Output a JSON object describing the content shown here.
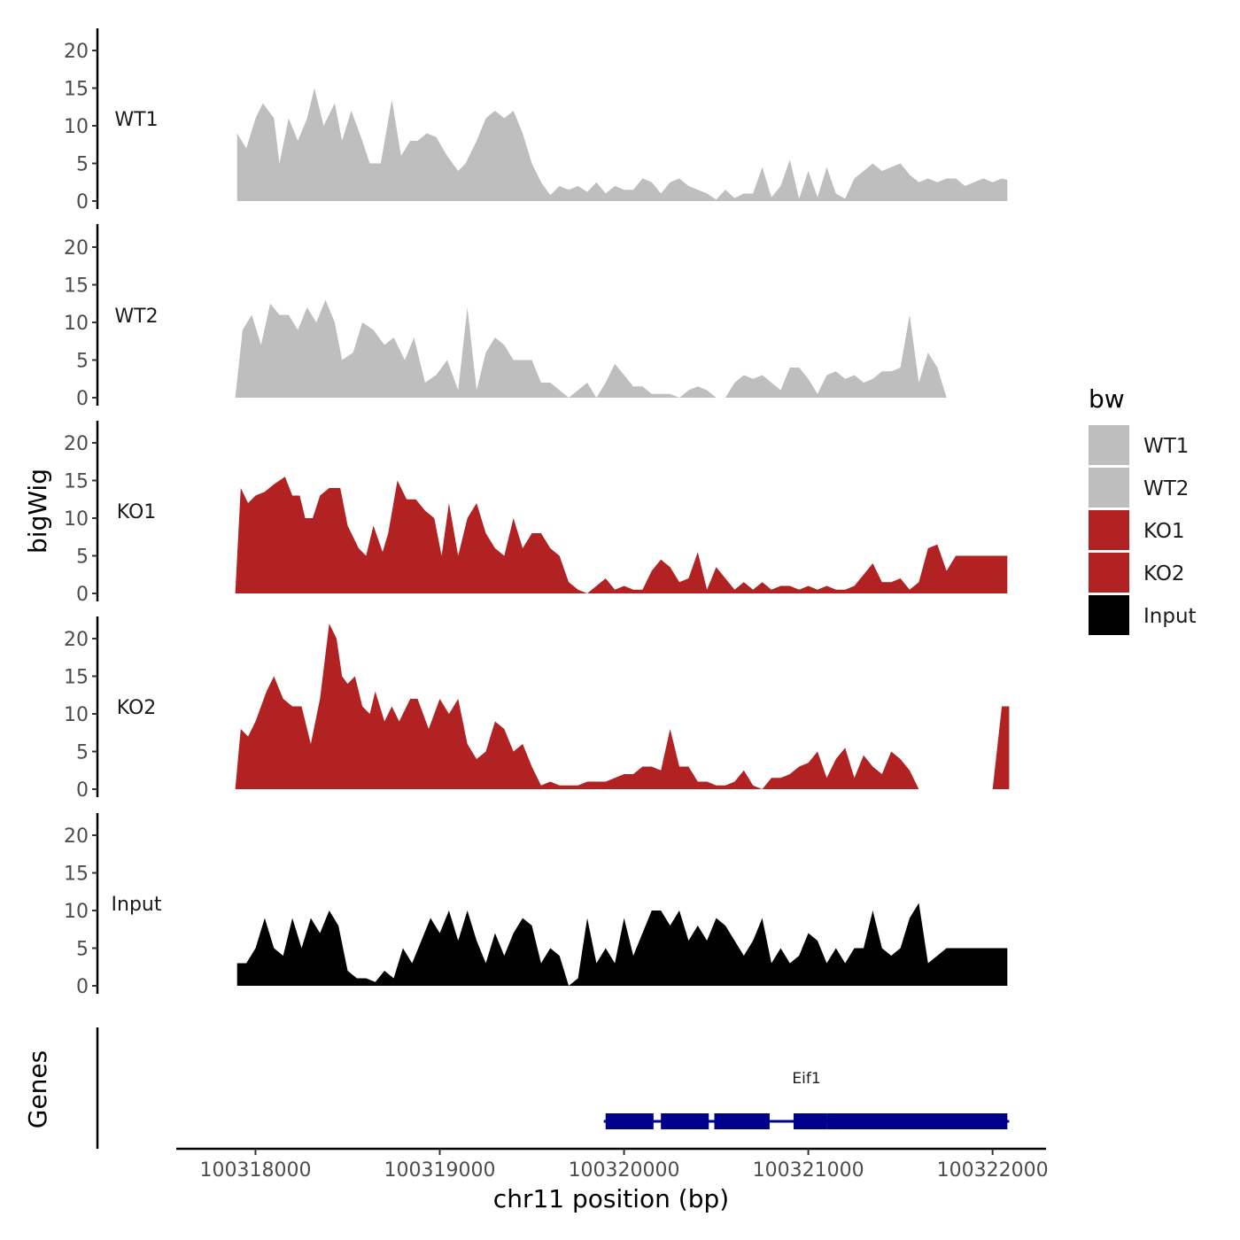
{
  "chart_data": {
    "type": "area",
    "chromosome": "chr11",
    "xlabel": "chr11 position (bp)",
    "ylabel": "bigWig",
    "genes_label": "Genes",
    "xlim": [
      100317570,
      100322290
    ],
    "x_ticks": [
      100318000,
      100319000,
      100320000,
      100321000,
      100322000
    ],
    "x_tick_labels": [
      "100318000",
      "100319000",
      "100320000",
      "100321000",
      "100322000"
    ],
    "ylim": [
      0,
      23
    ],
    "y_ticks": [
      0,
      5,
      10,
      15,
      20
    ],
    "y_tick_labels": [
      "0",
      "5",
      "10",
      "15",
      "20"
    ],
    "legend": {
      "title": "bw",
      "position": "right",
      "entries": [
        {
          "name": "WT1",
          "color": "#bebebe"
        },
        {
          "name": "WT2",
          "color": "#bebebe"
        },
        {
          "name": "KO1",
          "color": "#b22222"
        },
        {
          "name": "KO2",
          "color": "#b22222"
        },
        {
          "name": "Input",
          "color": "#000000"
        }
      ]
    },
    "series": [
      {
        "name": "WT1",
        "color": "#bebebe",
        "x": [
          100317900,
          100317950,
          100318000,
          100318040,
          100318100,
          100318130,
          100318180,
          100318230,
          100318280,
          100318320,
          100318370,
          100318430,
          100318470,
          100318520,
          100318580,
          100318620,
          100318680,
          100318740,
          100318790,
          100318840,
          100318880,
          100318930,
          100318980,
          100319040,
          100319100,
          100319140,
          100319200,
          100319250,
          100319300,
          100319350,
          100319400,
          100319450,
          100319500,
          100319550,
          100319600,
          100319650,
          100319700,
          100319750,
          100319800,
          100319850,
          100319900,
          100319950,
          100320000,
          100320050,
          100320100,
          100320150,
          100320200,
          100320250,
          100320300,
          100320350,
          100320400,
          100320450,
          100320500,
          100320550,
          100320600,
          100320650,
          100320700,
          100320750,
          100320800,
          100320850,
          100320900,
          100320950,
          100321000,
          100321050,
          100321100,
          100321150,
          100321200,
          100321250,
          100321300,
          100321350,
          100321400,
          100321450,
          100321500,
          100321550,
          100321600,
          100321650,
          100321700,
          100321750,
          100321800,
          100321850,
          100321900,
          100321950,
          100322000,
          100322050,
          100322080
        ],
        "values": [
          9,
          7,
          11,
          13,
          11,
          5,
          11,
          8,
          11,
          15,
          10,
          13,
          8,
          12,
          8,
          5,
          5,
          13.5,
          6,
          8,
          8,
          9,
          8.5,
          6,
          4,
          5,
          8,
          11,
          12,
          11,
          12,
          9,
          5,
          2.5,
          0.8,
          2,
          1.5,
          2,
          1.2,
          2.5,
          1,
          2,
          1.5,
          1.5,
          3,
          2.5,
          1,
          2.5,
          3,
          2,
          1.5,
          1,
          0.2,
          1.5,
          0.4,
          1,
          1,
          4.5,
          0.5,
          2,
          5.5,
          0.3,
          4,
          0.5,
          4.5,
          1,
          0.3,
          3,
          4,
          5,
          4,
          4.5,
          5,
          3.5,
          2.5,
          3,
          2.5,
          3,
          3,
          2,
          2.5,
          3,
          2.5,
          3,
          2.8
        ]
      },
      {
        "name": "WT2",
        "color": "#bebebe",
        "x": [
          100317890,
          100317930,
          100317980,
          100318030,
          100318080,
          100318130,
          100318180,
          100318230,
          100318280,
          100318330,
          100318380,
          100318430,
          100318470,
          100318530,
          100318580,
          100318640,
          100318700,
          100318750,
          100318810,
          100318860,
          100318920,
          100318980,
          100319040,
          100319100,
          100319150,
          100319200,
          100319250,
          100319300,
          100319350,
          100319400,
          100319450,
          100319500,
          100319550,
          100319600,
          100319650,
          100319700,
          100319750,
          100319800,
          100319850,
          100319900,
          100319950,
          100320000,
          100320050,
          100320100,
          100320150,
          100320200,
          100320250,
          100320300,
          100320350,
          100320400,
          100320450,
          100320500,
          100320550,
          100320600,
          100320650,
          100320700,
          100320750,
          100320800,
          100320850,
          100320900,
          100320950,
          100321000,
          100321050,
          100321100,
          100321150,
          100321200,
          100321250,
          100321300,
          100321350,
          100321400,
          100321450,
          100321500,
          100321550,
          100321600,
          100321650,
          100321700,
          100321750,
          100321800,
          100321850,
          100321900,
          100321950,
          100322000,
          100322050,
          100322080
        ],
        "values": [
          0,
          9,
          11,
          7,
          12.5,
          11,
          11,
          9,
          12,
          10,
          13,
          10,
          5,
          6,
          10,
          9,
          7,
          8,
          5,
          8,
          2,
          3,
          5,
          1,
          12,
          1,
          6,
          8,
          7,
          5,
          5,
          5,
          2,
          2,
          1,
          0,
          1,
          2,
          0,
          2,
          4.5,
          3,
          1.5,
          1.5,
          0.5,
          0.5,
          0.5,
          0,
          1,
          1.5,
          1,
          0,
          0,
          2,
          3,
          2.5,
          3,
          2,
          1,
          4,
          4,
          2.5,
          0.5,
          3,
          3.5,
          2.5,
          3,
          2,
          2.5,
          3.5,
          3.5,
          4,
          11,
          2,
          6,
          4,
          0,
          0,
          0,
          0,
          0,
          0,
          0,
          0
        ]
      },
      {
        "name": "KO1",
        "color": "#b22222",
        "x": [
          100317890,
          100317920,
          100317960,
          100318000,
          100318050,
          100318100,
          100318160,
          100318200,
          100318240,
          100318270,
          100318310,
          100318350,
          100318400,
          100318460,
          100318500,
          100318560,
          100318600,
          100318640,
          100318690,
          100318720,
          100318770,
          100318820,
          100318870,
          100318920,
          100318970,
          100319010,
          100319050,
          100319100,
          100319150,
          100319200,
          100319250,
          100319300,
          100319350,
          100319400,
          100319450,
          100319500,
          100319550,
          100319600,
          100319650,
          100319700,
          100319750,
          100319800,
          100319850,
          100319900,
          100319950,
          100320000,
          100320050,
          100320100,
          100320150,
          100320200,
          100320250,
          100320300,
          100320350,
          100320400,
          100320450,
          100320500,
          100320550,
          100320600,
          100320650,
          100320700,
          100320750,
          100320800,
          100320850,
          100320900,
          100320950,
          100321000,
          100321050,
          100321100,
          100321150,
          100321200,
          100321250,
          100321300,
          100321350,
          100321400,
          100321450,
          100321500,
          100321550,
          100321600,
          100321650,
          100321700,
          100321750,
          100321800,
          100321850,
          100321900,
          100321950,
          100322000,
          100322050,
          100322080
        ],
        "values": [
          0,
          14,
          12,
          13,
          13.5,
          14.5,
          15.5,
          13,
          13,
          10,
          10,
          13,
          14,
          14,
          9,
          6,
          5,
          9,
          5.5,
          8,
          15,
          12.5,
          12.5,
          11,
          10,
          5,
          12,
          5,
          10,
          12,
          8,
          6,
          5,
          10,
          6,
          8,
          8,
          6,
          5,
          1.5,
          0.5,
          0,
          1,
          2,
          0.5,
          1,
          0.5,
          0.5,
          3,
          4.5,
          3.5,
          1.5,
          2,
          5.5,
          0.5,
          3.5,
          2,
          0.5,
          1.5,
          0.5,
          1.5,
          0.5,
          1,
          1,
          0.5,
          1,
          0.5,
          1,
          0.5,
          0.5,
          1,
          2.5,
          4,
          1.5,
          1.5,
          2,
          0.5,
          1.5,
          6,
          6.5,
          3,
          5,
          5,
          5,
          5,
          5,
          5,
          5
        ]
      },
      {
        "name": "KO2",
        "color": "#b22222",
        "x": [
          100317890,
          100317920,
          100317960,
          100318000,
          100318060,
          100318100,
          100318150,
          100318200,
          100318250,
          100318300,
          100318350,
          100318400,
          100318440,
          100318470,
          100318500,
          100318540,
          100318580,
          100318620,
          100318650,
          100318700,
          100318740,
          100318780,
          100318840,
          100318880,
          100318940,
          100319000,
          100319050,
          100319100,
          100319150,
          100319200,
          100319250,
          100319300,
          100319350,
          100319400,
          100319450,
          100319500,
          100319550,
          100319600,
          100319650,
          100319700,
          100319750,
          100319800,
          100319850,
          100319900,
          100319950,
          100320000,
          100320050,
          100320100,
          100320150,
          100320200,
          100320250,
          100320300,
          100320350,
          100320400,
          100320450,
          100320500,
          100320550,
          100320600,
          100320650,
          100320700,
          100320750,
          100320800,
          100320850,
          100320900,
          100320950,
          100321000,
          100321050,
          100321100,
          100321150,
          100321200,
          100321250,
          100321300,
          100321350,
          100321400,
          100321450,
          100321500,
          100321550,
          100321600,
          100321650,
          100321700,
          100321750,
          100321800,
          100321850,
          100321900,
          100321950,
          100322000,
          100322050,
          100322090
        ],
        "values": [
          0,
          8,
          7,
          9,
          13,
          15,
          12,
          11,
          11,
          6,
          12,
          22,
          20,
          15,
          14,
          15,
          11,
          10,
          13,
          9,
          11,
          9,
          12,
          12,
          8,
          12,
          10,
          12,
          6,
          4,
          5,
          9,
          8,
          5,
          6,
          3,
          0.5,
          1,
          0.5,
          0.5,
          0.5,
          1,
          1,
          1,
          1.5,
          2,
          2,
          3,
          3,
          2.5,
          8,
          3,
          3,
          1,
          1,
          0.5,
          0.5,
          1,
          2.5,
          0.5,
          0,
          1.5,
          1.5,
          2,
          3,
          3.5,
          5,
          1.5,
          4,
          5.5,
          1.5,
          4.5,
          3,
          2,
          5,
          4,
          2.5,
          0,
          0,
          0,
          0,
          0,
          0,
          0,
          0,
          0,
          11,
          11
        ]
      },
      {
        "name": "Input",
        "color": "#000000",
        "x": [
          100317900,
          100317950,
          100318000,
          100318050,
          100318100,
          100318150,
          100318200,
          100318250,
          100318300,
          100318350,
          100318400,
          100318450,
          100318500,
          100318550,
          100318600,
          100318650,
          100318700,
          100318750,
          100318800,
          100318850,
          100318900,
          100318950,
          100319000,
          100319050,
          100319100,
          100319150,
          100319200,
          100319250,
          100319300,
          100319350,
          100319400,
          100319450,
          100319500,
          100319550,
          100319600,
          100319650,
          100319700,
          100319750,
          100319800,
          100319850,
          100319900,
          100319950,
          100320000,
          100320050,
          100320100,
          100320150,
          100320200,
          100320250,
          100320300,
          100320350,
          100320400,
          100320450,
          100320500,
          100320550,
          100320600,
          100320650,
          100320700,
          100320750,
          100320800,
          100320850,
          100320900,
          100320950,
          100321000,
          100321050,
          100321100,
          100321150,
          100321200,
          100321250,
          100321300,
          100321350,
          100321400,
          100321450,
          100321500,
          100321550,
          100321600,
          100321650,
          100321700,
          100321750,
          100321800,
          100321850,
          100321900,
          100321950,
          100322000,
          100322050,
          100322080
        ],
        "values": [
          3,
          3,
          5,
          9,
          5,
          4,
          9,
          5,
          9,
          7,
          10,
          8,
          2,
          1,
          1,
          0.5,
          2,
          1,
          5,
          3,
          6,
          9,
          7,
          10,
          6,
          10,
          6,
          3,
          7,
          4,
          7,
          9,
          8,
          3,
          5,
          4,
          0,
          1,
          9,
          3,
          5,
          3,
          9,
          4,
          7,
          10,
          10,
          8,
          10,
          6,
          8,
          6,
          9,
          8,
          6,
          4,
          6,
          9,
          3,
          5,
          3,
          4,
          7,
          6,
          3,
          5,
          3,
          5,
          5,
          10,
          5,
          4,
          5,
          9,
          11,
          3,
          4,
          5,
          5,
          5,
          5,
          5,
          5,
          5,
          5
        ]
      }
    ],
    "genes": [
      {
        "name": "Eif1",
        "strand": "+",
        "start": 100319890,
        "end": 100322090,
        "exons": [
          [
            100319900,
            100320160
          ],
          [
            100320200,
            100320460
          ],
          [
            100320490,
            100320790
          ],
          [
            100320920,
            100321100
          ],
          [
            100321100,
            100322080
          ]
        ]
      }
    ]
  }
}
